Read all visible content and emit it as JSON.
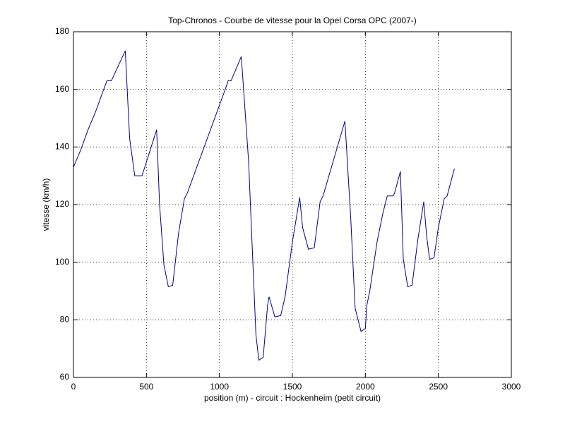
{
  "chart_data": {
    "type": "line",
    "title": "Top-Chronos - Courbe de vitesse pour la Opel Corsa OPC (2007-)",
    "x_label": "position (m) - circuit : Hockenheim (petit circuit)",
    "y_label": "vitesse (km/h)",
    "xlim": [
      0,
      3000
    ],
    "xticks": [
      0,
      500,
      1000,
      1500,
      2000,
      2500,
      3000
    ],
    "ylim": [
      60,
      180
    ],
    "yticks": [
      60,
      80,
      100,
      120,
      140,
      160,
      180
    ],
    "grid": true,
    "series": [
      {
        "color": "#00008b",
        "x": [
          0,
          50,
          100,
          150,
          200,
          230,
          260,
          355,
          385,
          420,
          470,
          570,
          590,
          620,
          650,
          680,
          720,
          760,
          780,
          1040,
          1060,
          1080,
          1150,
          1200,
          1250,
          1270,
          1300,
          1330,
          1340,
          1380,
          1420,
          1450,
          1500,
          1550,
          1570,
          1610,
          1650,
          1690,
          1710,
          1860,
          1900,
          1930,
          1970,
          2000,
          2010,
          2030,
          2080,
          2120,
          2150,
          2190,
          2200,
          2240,
          2260,
          2290,
          2320,
          2360,
          2400,
          2420,
          2440,
          2470,
          2500,
          2540,
          2560,
          2610
        ],
        "values": [
          133,
          139,
          146,
          152,
          159,
          163,
          163,
          173.4,
          143,
          130,
          130,
          146,
          120,
          99,
          91.5,
          92,
          110,
          122,
          124,
          160,
          163,
          163,
          171.4,
          135,
          75,
          66,
          67,
          85,
          88,
          81,
          81.5,
          88,
          107,
          122.5,
          112,
          104.5,
          105,
          121,
          123,
          149,
          115,
          84,
          76,
          77,
          85,
          90,
          107,
          117,
          123,
          123,
          124,
          131.5,
          101,
          91.5,
          92,
          108,
          121,
          109,
          101,
          101.5,
          112,
          122,
          123,
          132.5
        ]
      }
    ]
  }
}
